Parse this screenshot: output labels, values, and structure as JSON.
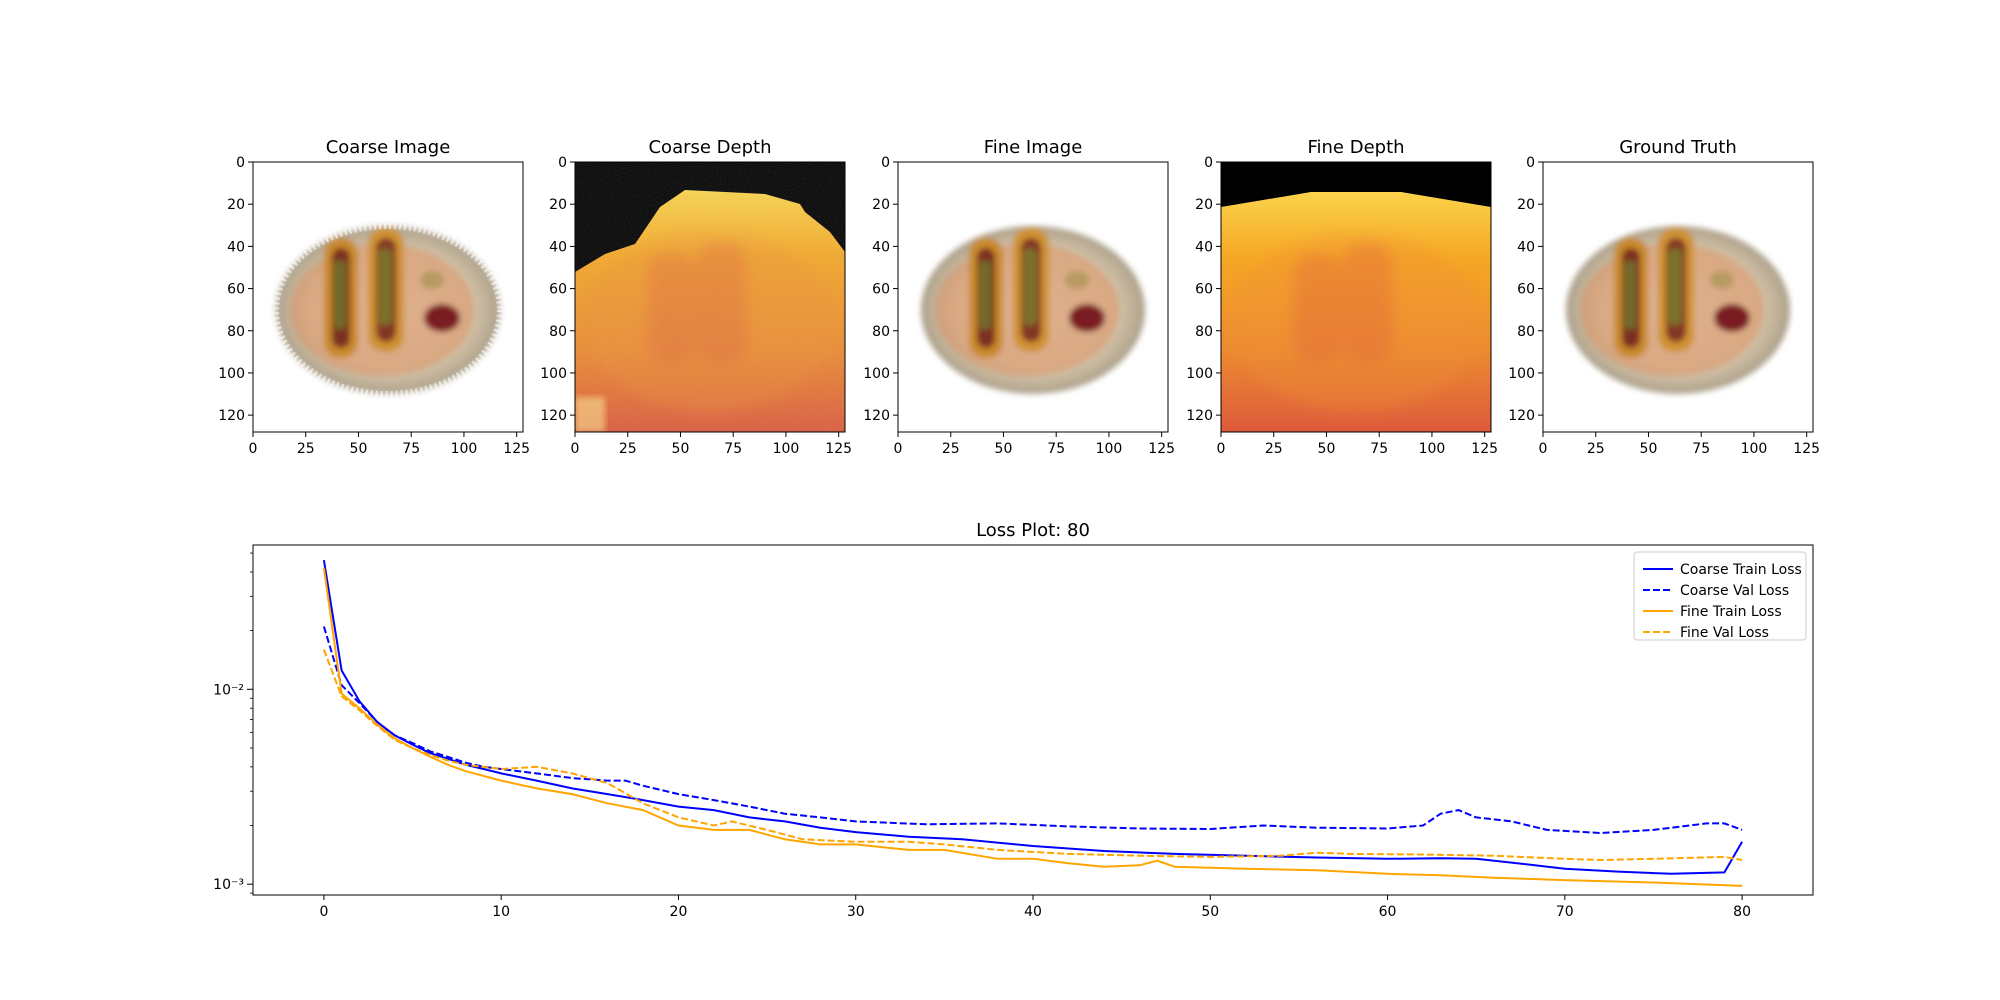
{
  "panels": [
    {
      "title": "Coarse Image",
      "kind": "image-coarse"
    },
    {
      "title": "Coarse Depth",
      "kind": "depth-coarse"
    },
    {
      "title": "Fine Image",
      "kind": "image-fine"
    },
    {
      "title": "Fine Depth",
      "kind": "depth-fine"
    },
    {
      "title": "Ground Truth",
      "kind": "image-gt"
    }
  ],
  "panel_axes": {
    "xticks": [
      "0",
      "25",
      "50",
      "75",
      "100",
      "125"
    ],
    "yticks": [
      "0",
      "20",
      "40",
      "60",
      "80",
      "100",
      "120"
    ],
    "range": [
      0,
      128
    ]
  },
  "colors": {
    "coarse": "#0000ff",
    "fine": "#ffa500",
    "depth_low": "#d8473e",
    "depth_high": "#fcf5a0",
    "depth_void": "#000000"
  },
  "chart_data": {
    "type": "line",
    "title": "Loss Plot: 80",
    "xlabel": "",
    "ylabel": "",
    "yscale": "log",
    "xlim": [
      -4,
      84
    ],
    "ylim": [
      0.00088,
      0.055
    ],
    "xticks": [
      0,
      10,
      20,
      30,
      40,
      50,
      60,
      70,
      80
    ],
    "yticks": [
      {
        "value": 0.01,
        "label": "10⁻²"
      },
      {
        "value": 0.001,
        "label": "10⁻³"
      }
    ],
    "legend_position": "top-right",
    "series": [
      {
        "name": "Coarse Train Loss",
        "color": "#0000ff",
        "style": "solid",
        "points": [
          [
            0,
            0.046
          ],
          [
            1,
            0.0125
          ],
          [
            2,
            0.0087
          ],
          [
            3,
            0.0068
          ],
          [
            4,
            0.0058
          ],
          [
            5,
            0.0052
          ],
          [
            6,
            0.0047
          ],
          [
            7,
            0.0044
          ],
          [
            8,
            0.0041
          ],
          [
            9,
            0.0039
          ],
          [
            10,
            0.0037
          ],
          [
            12,
            0.0034
          ],
          [
            14,
            0.0031
          ],
          [
            16,
            0.0029
          ],
          [
            18,
            0.0027
          ],
          [
            20,
            0.0025
          ],
          [
            22,
            0.0024
          ],
          [
            24,
            0.0022
          ],
          [
            26,
            0.0021
          ],
          [
            28,
            0.00195
          ],
          [
            30,
            0.00185
          ],
          [
            33,
            0.00175
          ],
          [
            36,
            0.0017
          ],
          [
            40,
            0.00157
          ],
          [
            44,
            0.00148
          ],
          [
            48,
            0.00143
          ],
          [
            52,
            0.0014
          ],
          [
            56,
            0.00137
          ],
          [
            60,
            0.00135
          ],
          [
            63,
            0.00136
          ],
          [
            65,
            0.00135
          ],
          [
            68,
            0.00126
          ],
          [
            70,
            0.0012
          ],
          [
            73,
            0.00116
          ],
          [
            76,
            0.00113
          ],
          [
            79,
            0.00115
          ],
          [
            80,
            0.00165
          ]
        ]
      },
      {
        "name": "Coarse Val Loss",
        "color": "#0000ff",
        "style": "dashed",
        "points": [
          [
            0,
            0.021
          ],
          [
            1,
            0.0105
          ],
          [
            2,
            0.0085
          ],
          [
            3,
            0.0068
          ],
          [
            4,
            0.0058
          ],
          [
            5,
            0.0053
          ],
          [
            6,
            0.0048
          ],
          [
            7,
            0.0045
          ],
          [
            8,
            0.0042
          ],
          [
            9,
            0.004
          ],
          [
            10,
            0.0039
          ],
          [
            12,
            0.0037
          ],
          [
            14,
            0.0035
          ],
          [
            16,
            0.0034
          ],
          [
            17,
            0.0034
          ],
          [
            18,
            0.0032
          ],
          [
            20,
            0.0029
          ],
          [
            22,
            0.0027
          ],
          [
            24,
            0.0025
          ],
          [
            26,
            0.0023
          ],
          [
            28,
            0.0022
          ],
          [
            30,
            0.0021
          ],
          [
            34,
            0.00203
          ],
          [
            38,
            0.00205
          ],
          [
            42,
            0.00198
          ],
          [
            46,
            0.00193
          ],
          [
            50,
            0.00192
          ],
          [
            53,
            0.002
          ],
          [
            56,
            0.00195
          ],
          [
            60,
            0.00193
          ],
          [
            62,
            0.002
          ],
          [
            63,
            0.0023
          ],
          [
            64,
            0.0024
          ],
          [
            65,
            0.0022
          ],
          [
            67,
            0.0021
          ],
          [
            69,
            0.0019
          ],
          [
            72,
            0.00183
          ],
          [
            75,
            0.0019
          ],
          [
            78,
            0.00205
          ],
          [
            79,
            0.00205
          ],
          [
            80,
            0.0019
          ]
        ]
      },
      {
        "name": "Fine Train Loss",
        "color": "#ffa500",
        "style": "solid",
        "points": [
          [
            0,
            0.042
          ],
          [
            1,
            0.0095
          ],
          [
            2,
            0.008
          ],
          [
            3,
            0.0066
          ],
          [
            4,
            0.0056
          ],
          [
            5,
            0.005
          ],
          [
            6,
            0.0045
          ],
          [
            7,
            0.0041
          ],
          [
            8,
            0.0038
          ],
          [
            10,
            0.0034
          ],
          [
            12,
            0.0031
          ],
          [
            14,
            0.0029
          ],
          [
            16,
            0.0026
          ],
          [
            18,
            0.0024
          ],
          [
            20,
            0.002
          ],
          [
            22,
            0.0019
          ],
          [
            24,
            0.0019
          ],
          [
            26,
            0.0017
          ],
          [
            28,
            0.0016
          ],
          [
            30,
            0.0016
          ],
          [
            33,
            0.0015
          ],
          [
            35,
            0.0015
          ],
          [
            38,
            0.00135
          ],
          [
            40,
            0.00135
          ],
          [
            42,
            0.00128
          ],
          [
            44,
            0.00123
          ],
          [
            46,
            0.00125
          ],
          [
            47,
            0.00132
          ],
          [
            48,
            0.00123
          ],
          [
            52,
            0.0012
          ],
          [
            56,
            0.00118
          ],
          [
            60,
            0.00113
          ],
          [
            63,
            0.00111
          ],
          [
            66,
            0.00108
          ],
          [
            70,
            0.00105
          ],
          [
            75,
            0.00102
          ],
          [
            80,
            0.00098
          ]
        ]
      },
      {
        "name": "Fine Val Loss",
        "color": "#ffa500",
        "style": "dashed",
        "points": [
          [
            0,
            0.016
          ],
          [
            1,
            0.0092
          ],
          [
            2,
            0.0078
          ],
          [
            3,
            0.0065
          ],
          [
            4,
            0.0055
          ],
          [
            5,
            0.005
          ],
          [
            6,
            0.0046
          ],
          [
            7,
            0.0043
          ],
          [
            8,
            0.0041
          ],
          [
            10,
            0.0039
          ],
          [
            12,
            0.004
          ],
          [
            14,
            0.0037
          ],
          [
            16,
            0.0033
          ],
          [
            18,
            0.0026
          ],
          [
            20,
            0.0022
          ],
          [
            22,
            0.002
          ],
          [
            23,
            0.0021
          ],
          [
            25,
            0.0019
          ],
          [
            27,
            0.0017
          ],
          [
            30,
            0.00165
          ],
          [
            33,
            0.00165
          ],
          [
            35,
            0.0016
          ],
          [
            38,
            0.0015
          ],
          [
            42,
            0.00143
          ],
          [
            46,
            0.0014
          ],
          [
            50,
            0.00138
          ],
          [
            54,
            0.0014
          ],
          [
            56,
            0.00145
          ],
          [
            58,
            0.00143
          ],
          [
            62,
            0.00142
          ],
          [
            66,
            0.0014
          ],
          [
            70,
            0.00135
          ],
          [
            72,
            0.00133
          ],
          [
            75,
            0.00135
          ],
          [
            79,
            0.00138
          ],
          [
            80,
            0.00133
          ]
        ]
      }
    ]
  }
}
